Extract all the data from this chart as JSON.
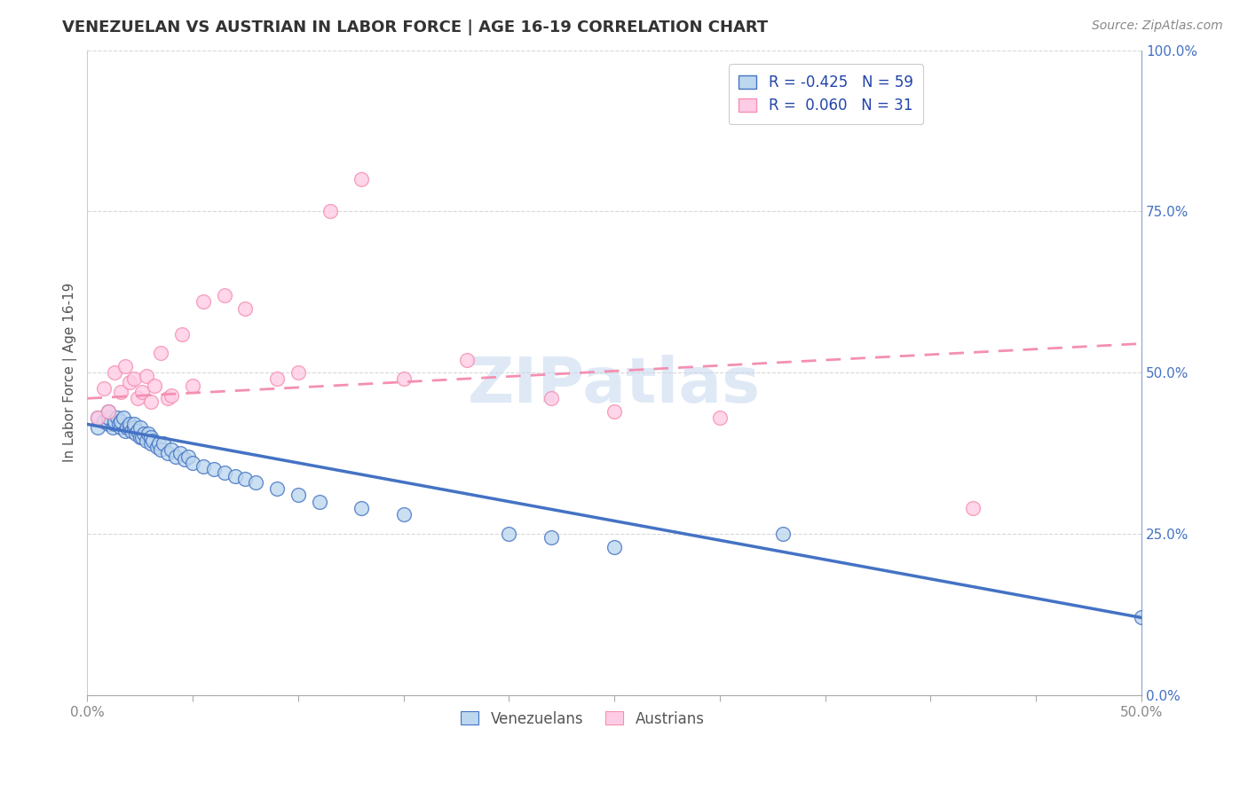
{
  "title": "VENEZUELAN VS AUSTRIAN IN LABOR FORCE | AGE 16-19 CORRELATION CHART",
  "source_text": "Source: ZipAtlas.com",
  "ylabel": "In Labor Force | Age 16-19",
  "xlim": [
    0.0,
    0.5
  ],
  "ylim": [
    0.0,
    1.0
  ],
  "venezuelan_legend": "Venezuelans",
  "austrian_legend": "Austrians",
  "blue_color": "#4472C4",
  "pink_color": "#F48FB1",
  "blue_fill": "#BDD7EE",
  "pink_fill": "#FFCCE5",
  "r_venezuelan": -0.425,
  "n_venezuelan": 59,
  "r_austrian": 0.06,
  "n_austrian": 31,
  "venezuelan_x": [
    0.005,
    0.005,
    0.008,
    0.01,
    0.01,
    0.01,
    0.012,
    0.013,
    0.013,
    0.014,
    0.015,
    0.016,
    0.016,
    0.017,
    0.018,
    0.019,
    0.02,
    0.02,
    0.021,
    0.022,
    0.022,
    0.023,
    0.024,
    0.025,
    0.025,
    0.026,
    0.027,
    0.028,
    0.029,
    0.03,
    0.03,
    0.031,
    0.033,
    0.034,
    0.035,
    0.036,
    0.038,
    0.04,
    0.042,
    0.044,
    0.046,
    0.048,
    0.05,
    0.055,
    0.06,
    0.065,
    0.07,
    0.075,
    0.08,
    0.09,
    0.1,
    0.11,
    0.13,
    0.15,
    0.2,
    0.22,
    0.25,
    0.33,
    0.5
  ],
  "venezuelan_y": [
    0.415,
    0.43,
    0.425,
    0.42,
    0.43,
    0.44,
    0.415,
    0.42,
    0.425,
    0.43,
    0.42,
    0.415,
    0.425,
    0.43,
    0.41,
    0.415,
    0.415,
    0.42,
    0.41,
    0.415,
    0.42,
    0.405,
    0.41,
    0.4,
    0.415,
    0.4,
    0.405,
    0.395,
    0.405,
    0.39,
    0.4,
    0.395,
    0.385,
    0.39,
    0.38,
    0.39,
    0.375,
    0.38,
    0.37,
    0.375,
    0.365,
    0.37,
    0.36,
    0.355,
    0.35,
    0.345,
    0.34,
    0.335,
    0.33,
    0.32,
    0.31,
    0.3,
    0.29,
    0.28,
    0.25,
    0.245,
    0.23,
    0.25,
    0.12
  ],
  "austrian_x": [
    0.005,
    0.008,
    0.01,
    0.013,
    0.016,
    0.018,
    0.02,
    0.022,
    0.024,
    0.026,
    0.028,
    0.03,
    0.032,
    0.035,
    0.038,
    0.04,
    0.045,
    0.05,
    0.055,
    0.065,
    0.075,
    0.09,
    0.1,
    0.115,
    0.13,
    0.15,
    0.18,
    0.22,
    0.25,
    0.3,
    0.42
  ],
  "austrian_y": [
    0.43,
    0.475,
    0.44,
    0.5,
    0.47,
    0.51,
    0.485,
    0.49,
    0.46,
    0.47,
    0.495,
    0.455,
    0.48,
    0.53,
    0.46,
    0.465,
    0.56,
    0.48,
    0.61,
    0.62,
    0.6,
    0.49,
    0.5,
    0.75,
    0.8,
    0.49,
    0.52,
    0.46,
    0.44,
    0.43,
    0.29
  ],
  "trend_ven_x0": 0.0,
  "trend_ven_y0": 0.42,
  "trend_ven_x1": 0.5,
  "trend_ven_y1": 0.12,
  "trend_aus_x0": 0.0,
  "trend_aus_y0": 0.46,
  "trend_aus_x1": 0.5,
  "trend_aus_y1": 0.545,
  "watermark": "ZIPatlas",
  "bg_color": "#ffffff",
  "grid_color": "#d8d8d8",
  "tick_color": "#888888",
  "right_axis_color": "#4472C4",
  "title_color": "#333333",
  "source_color": "#888888"
}
